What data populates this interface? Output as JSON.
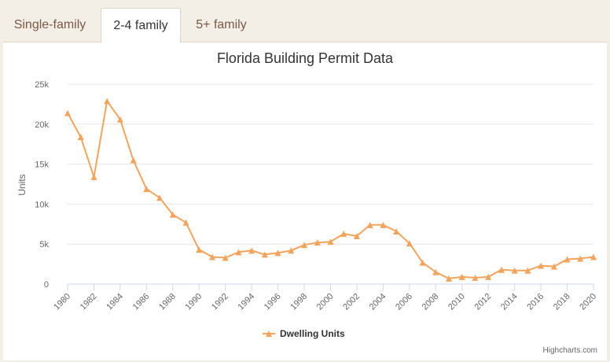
{
  "tabs": [
    {
      "label": "Single-family",
      "active": false
    },
    {
      "label": "2-4 family",
      "active": true
    },
    {
      "label": "5+ family",
      "active": false
    }
  ],
  "credits": "Highcharts.com",
  "colors": {
    "series": "#f4a35a",
    "grid": "#e6e6e6",
    "axis_text": "#666666",
    "title": "#333333",
    "tab_text": "#7a5a46"
  },
  "chart_data": {
    "type": "line",
    "title": "Florida Building Permit Data",
    "ylabel": "Units",
    "xlabel": "",
    "ylim": [
      0,
      25000
    ],
    "yticks": [
      {
        "value": 0,
        "label": "0"
      },
      {
        "value": 5000,
        "label": "5k"
      },
      {
        "value": 10000,
        "label": "10k"
      },
      {
        "value": 15000,
        "label": "15k"
      },
      {
        "value": 20000,
        "label": "20k"
      },
      {
        "value": 25000,
        "label": "25k"
      }
    ],
    "xlim": [
      1980,
      2020
    ],
    "xticks": [
      1980,
      1982,
      1984,
      1986,
      1988,
      1990,
      1992,
      1994,
      1996,
      1998,
      2000,
      2002,
      2004,
      2006,
      2008,
      2010,
      2012,
      2014,
      2016,
      2018,
      2020
    ],
    "grid": true,
    "legend_position": "bottom-center",
    "series": [
      {
        "name": "Dwelling Units",
        "marker": "triangle",
        "x": [
          1980,
          1981,
          1982,
          1983,
          1984,
          1985,
          1986,
          1987,
          1988,
          1989,
          1990,
          1991,
          1992,
          1993,
          1994,
          1995,
          1996,
          1997,
          1998,
          1999,
          2000,
          2001,
          2002,
          2003,
          2004,
          2005,
          2006,
          2007,
          2008,
          2009,
          2010,
          2011,
          2012,
          2013,
          2014,
          2015,
          2016,
          2017,
          2018,
          2019,
          2020
        ],
        "values": [
          21400,
          18400,
          13400,
          22900,
          20600,
          15500,
          11900,
          10800,
          8700,
          7700,
          4300,
          3400,
          3300,
          4000,
          4200,
          3700,
          3900,
          4200,
          4900,
          5200,
          5300,
          6300,
          6000,
          7400,
          7400,
          6600,
          5100,
          2700,
          1500,
          700,
          900,
          800,
          900,
          1800,
          1700,
          1700,
          2300,
          2200,
          3100,
          3200,
          3400
        ]
      }
    ]
  }
}
